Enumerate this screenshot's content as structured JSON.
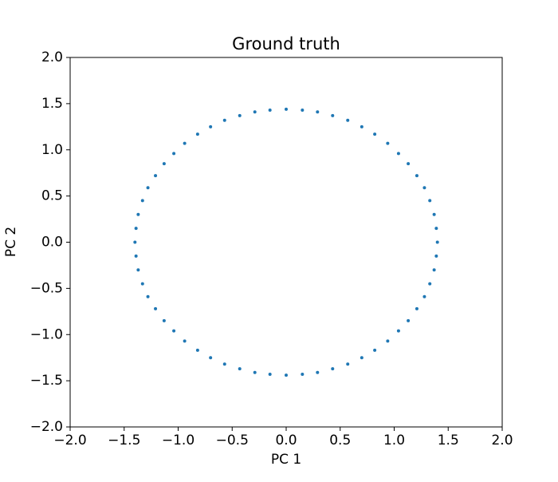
{
  "chart_data": {
    "type": "scatter",
    "title": "Ground truth",
    "x_label": "PC 1",
    "y_label": "PC 2",
    "color": "#1f77b4",
    "grid": false,
    "x": [
      1.4,
      1.39,
      1.37,
      1.33,
      1.28,
      1.21,
      1.13,
      1.04,
      0.94,
      0.82,
      0.7,
      0.57,
      0.43,
      0.29,
      0.15,
      0,
      -0.15,
      -0.29,
      -0.43,
      -0.57,
      -0.7,
      -0.82,
      -0.94,
      -1.04,
      -1.13,
      -1.21,
      -1.28,
      -1.33,
      -1.37,
      -1.39,
      -1.4,
      -1.39,
      -1.37,
      -1.33,
      -1.28,
      -1.21,
      -1.13,
      -1.04,
      -0.94,
      -0.82,
      -0.7,
      -0.57,
      -0.43,
      -0.29,
      -0.15,
      0,
      0.15,
      0.29,
      0.43,
      0.57,
      0.7,
      0.82,
      0.94,
      1.04,
      1.13,
      1.21,
      1.28,
      1.33,
      1.37,
      1.39
    ],
    "values": [
      0,
      0.15,
      0.3,
      0.45,
      0.59,
      0.72,
      0.85,
      0.96,
      1.07,
      1.17,
      1.25,
      1.32,
      1.37,
      1.41,
      1.43,
      1.44,
      1.43,
      1.41,
      1.37,
      1.32,
      1.25,
      1.17,
      1.07,
      0.96,
      0.85,
      0.72,
      0.59,
      0.45,
      0.3,
      0.15,
      0,
      -0.15,
      -0.3,
      -0.45,
      -0.59,
      -0.72,
      -0.85,
      -0.96,
      -1.07,
      -1.17,
      -1.25,
      -1.32,
      -1.37,
      -1.41,
      -1.43,
      -1.44,
      -1.43,
      -1.41,
      -1.37,
      -1.32,
      -1.25,
      -1.17,
      -1.07,
      -0.96,
      -0.85,
      -0.72,
      -0.59,
      -0.45,
      -0.3,
      -0.15
    ],
    "xlim": [
      -2,
      2
    ],
    "ylim": [
      -2,
      2
    ],
    "xticks": [
      {
        "value": -2,
        "label": "−2.0"
      },
      {
        "value": -1.5,
        "label": "−1.5"
      },
      {
        "value": -1,
        "label": "−1.0"
      },
      {
        "value": -0.5,
        "label": "−0.5"
      },
      {
        "value": 0,
        "label": "0.0"
      },
      {
        "value": 0.5,
        "label": "0.5"
      },
      {
        "value": 1,
        "label": "1.0"
      },
      {
        "value": 1.5,
        "label": "1.5"
      },
      {
        "value": 2,
        "label": "2.0"
      }
    ],
    "yticks": [
      {
        "value": -2,
        "label": "−2.0"
      },
      {
        "value": -1.5,
        "label": "−1.5"
      },
      {
        "value": -1,
        "label": "−1.0"
      },
      {
        "value": -0.5,
        "label": "−0.5"
      },
      {
        "value": 0,
        "label": "0.0"
      },
      {
        "value": 0.5,
        "label": "0.5"
      },
      {
        "value": 1,
        "label": "1.0"
      },
      {
        "value": 1.5,
        "label": "1.5"
      },
      {
        "value": 2,
        "label": "2.0"
      }
    ]
  }
}
